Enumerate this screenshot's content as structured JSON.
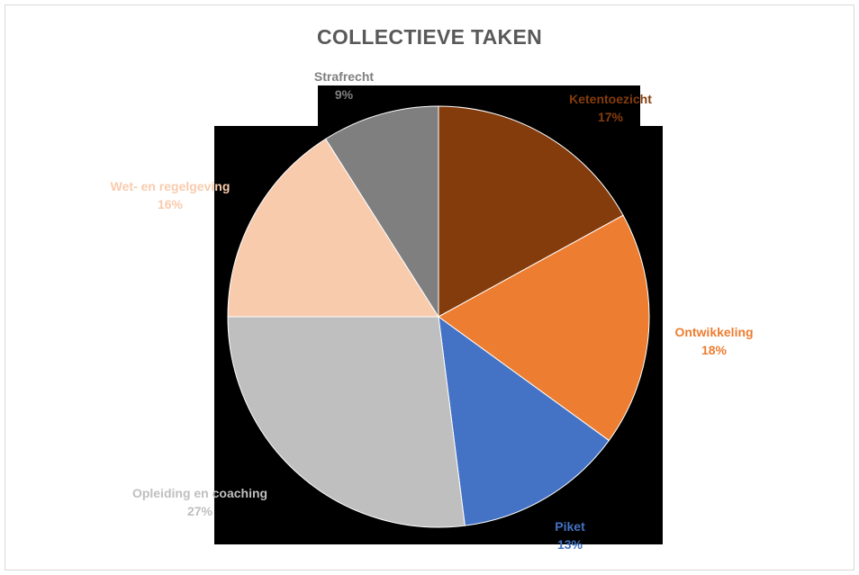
{
  "chart_data": {
    "type": "pie",
    "title": "COLLECTIEVE TAKEN",
    "slices": [
      {
        "label": "Ketentoezicht",
        "value": 17,
        "value_label": "17%",
        "color": "#843c0c"
      },
      {
        "label": "Ontwikkeling",
        "value": 18,
        "value_label": "18%",
        "color": "#ed7d31"
      },
      {
        "label": "Piket",
        "value": 13,
        "value_label": "13%",
        "color": "#4472c4"
      },
      {
        "label": "Opleiding en coaching",
        "value": 27,
        "value_label": "27%",
        "color": "#bfbfbf"
      },
      {
        "label": "Wet- en regelgeving",
        "value": 16,
        "value_label": "16%",
        "color": "#f8cbad"
      },
      {
        "label": "Strafrecht",
        "value": 9,
        "value_label": "9%",
        "color": "#7f7f7f"
      }
    ],
    "legend": "none"
  }
}
